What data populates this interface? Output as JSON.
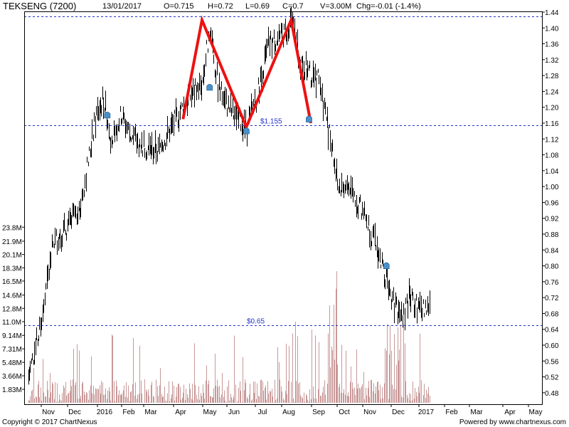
{
  "header": {
    "symbol": "TEKSENG (7200)",
    "date": "13/01/2017",
    "open": "O=0.715",
    "high": "H=0.72",
    "low": "L=0.69",
    "close": "C=0.7",
    "volume": "V=3.00M",
    "change": "Chg=-0.01 (-1.4%)"
  },
  "footer": {
    "copyright": "Copyright © 2017 ChartNexus",
    "powered": "Powered by www.chartnexus.com"
  },
  "colors": {
    "price": "#000000",
    "volume": "#c89898",
    "support": "#2233cc",
    "pattern": "#ee1111",
    "marker": "#4a90c8"
  },
  "chart_data": {
    "type": "candlestick",
    "price_axis": {
      "ticks": [
        "0.48",
        "0.52",
        "0.56",
        "0.60",
        "0.64",
        "0.68",
        "0.72",
        "0.76",
        "0.80",
        "0.84",
        "0.88",
        "0.92",
        "0.96",
        "1.00",
        "1.04",
        "1.08",
        "1.12",
        "1.16",
        "1.20",
        "1.24",
        "1.28",
        "1.32",
        "1.36",
        "1.40",
        "1.44"
      ],
      "ylim": [
        0.46,
        1.44
      ]
    },
    "volume_axis": {
      "ticks": [
        "1.83M",
        "3.66M",
        "5.48M",
        "7.31M",
        "9.14M",
        "11.0M",
        "12.8M",
        "14.6M",
        "16.5M",
        "18.3M",
        "20.1M",
        "21.9M",
        "23.8M"
      ],
      "ylim": [
        0,
        24.5
      ]
    },
    "x_axis": {
      "labels": [
        "Nov",
        "Dec",
        "2016",
        "Feb",
        "Mar",
        "Apr",
        "May",
        "Jun",
        "Jul",
        "Aug",
        "Sep",
        "Oct",
        "Nov",
        "Dec",
        "2017",
        "Feb",
        "Mar",
        "Apr",
        "May"
      ]
    },
    "close_series": {
      "name": "",
      "x": [
        "2015-10-23",
        "2015-11-01",
        "2015-11-15",
        "2015-12-01",
        "2015-12-15",
        "2016-01-01",
        "2016-01-10",
        "2016-01-20",
        "2016-02-01",
        "2016-02-15",
        "2016-03-01",
        "2016-03-15",
        "2016-04-01",
        "2016-04-15",
        "2016-05-01",
        "2016-05-10",
        "2016-05-20",
        "2016-06-01",
        "2016-06-10",
        "2016-06-20",
        "2016-07-01",
        "2016-07-15",
        "2016-08-01",
        "2016-08-10",
        "2016-08-20",
        "2016-09-01",
        "2016-09-10",
        "2016-09-20",
        "2016-10-01",
        "2016-10-15",
        "2016-11-01",
        "2016-11-15",
        "2016-12-01",
        "2016-12-10",
        "2016-12-20",
        "2017-01-01",
        "2017-01-13"
      ],
      "values": [
        0.52,
        0.64,
        0.86,
        0.9,
        0.96,
        1.18,
        1.22,
        1.12,
        1.18,
        1.12,
        1.1,
        1.09,
        1.16,
        1.22,
        1.26,
        1.4,
        1.25,
        1.2,
        1.17,
        1.15,
        1.23,
        1.36,
        1.38,
        1.42,
        1.32,
        1.28,
        1.27,
        1.15,
        1.0,
        1.0,
        0.93,
        0.84,
        0.72,
        0.66,
        0.72,
        0.69,
        0.7
      ]
    },
    "annotations": {
      "double_top": [
        {
          "date": "2016-04-11",
          "price": 1.17
        },
        {
          "date": "2016-05-01",
          "price": 1.42
        },
        {
          "date": "2016-06-20",
          "price": 1.15
        },
        {
          "date": "2016-08-10",
          "price": 1.42
        },
        {
          "date": "2016-09-01",
          "price": 1.16
        }
      ],
      "support_lines": [
        {
          "price": 1.155,
          "label": "$1.155"
        },
        {
          "price": 0.65,
          "label": "$0.65"
        },
        {
          "price": 1.43,
          "label": ""
        }
      ],
      "markers": [
        {
          "date": "2016-01-15",
          "price": 1.18
        },
        {
          "date": "2016-05-10",
          "price": 1.25
        },
        {
          "date": "2016-06-20",
          "price": 1.14
        },
        {
          "date": "2016-08-30",
          "price": 1.17
        },
        {
          "date": "2016-11-25",
          "price": 0.8
        }
      ]
    },
    "grid": false,
    "legend": "none"
  }
}
